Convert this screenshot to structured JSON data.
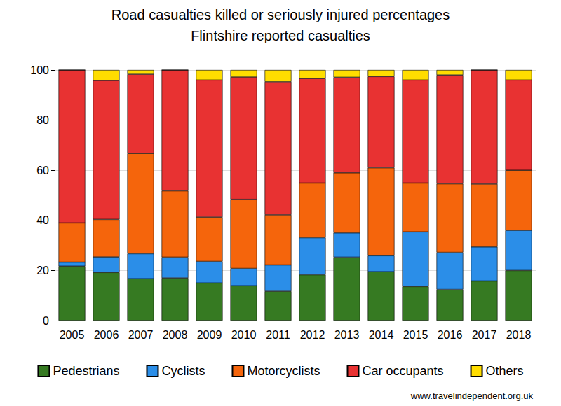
{
  "chart_data": {
    "type": "bar",
    "title": "Road casualties killed or seriously injured percentages",
    "subtitle": "Flintshire reported casualties",
    "annotations": [
      "www.travelindependent.org.uk"
    ],
    "categories": [
      "2005",
      "2006",
      "2007",
      "2008",
      "2009",
      "2010",
      "2011",
      "2012",
      "2013",
      "2014",
      "2015",
      "2016",
      "2017",
      "2018"
    ],
    "series": [
      {
        "name": "Pedestrians",
        "color": "#367a22",
        "values": [
          21.7,
          19.2,
          16.7,
          17,
          15,
          13.9,
          11.7,
          18.3,
          25.3,
          19.5,
          13.6,
          12.4,
          15.8,
          20
        ]
      },
      {
        "name": "Cyclists",
        "color": "#2b8ee8",
        "values": [
          1.6,
          6.2,
          10,
          8.3,
          8.6,
          6.9,
          10.5,
          14.8,
          9.7,
          6.4,
          21.8,
          14.8,
          13.6,
          16
        ]
      },
      {
        "name": "Motorcyclists",
        "color": "#f5650c",
        "values": [
          15.7,
          15,
          40,
          26.5,
          17.7,
          27.6,
          20,
          21.8,
          24,
          35.1,
          19.5,
          27.4,
          25.1,
          24
        ]
      },
      {
        "name": "Car occupants",
        "color": "#e83232",
        "values": [
          61,
          55.4,
          31.6,
          48.2,
          54.7,
          48.8,
          53.1,
          41.7,
          38.1,
          36.4,
          41.1,
          43.4,
          45.5,
          36
        ]
      },
      {
        "name": "Others",
        "color": "#ffdd00",
        "values": [
          0,
          4.2,
          1.7,
          0,
          4,
          2.8,
          4.7,
          3.4,
          2.9,
          2.6,
          4,
          2,
          0,
          4
        ]
      }
    ],
    "ylim": [
      0,
      100
    ],
    "yticks": [
      0,
      20,
      40,
      60,
      80,
      100
    ],
    "grid": true,
    "stacked": true,
    "legend": "bottom"
  }
}
